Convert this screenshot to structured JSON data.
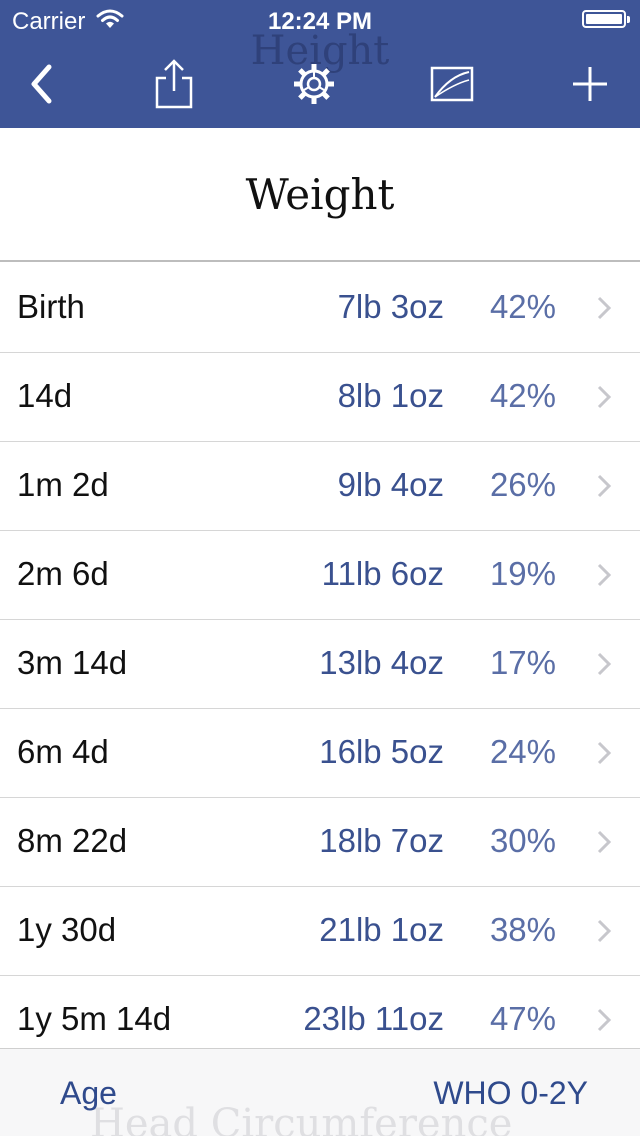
{
  "status_bar": {
    "carrier": "Carrier",
    "time": "12:24 PM"
  },
  "nav": {
    "ghost_title": "Height",
    "icons": [
      "back-chevron-icon",
      "share-icon",
      "gear-icon",
      "chart-icon",
      "plus-icon"
    ]
  },
  "header": {
    "title": "Weight"
  },
  "rows": [
    {
      "age": "Birth",
      "weight": "7lb 3oz",
      "percentile": "42%"
    },
    {
      "age": "14d",
      "weight": "8lb 1oz",
      "percentile": "42%"
    },
    {
      "age": "1m 2d",
      "weight": "9lb 4oz",
      "percentile": "26%"
    },
    {
      "age": "2m 6d",
      "weight": "11lb 6oz",
      "percentile": "19%"
    },
    {
      "age": "3m 14d",
      "weight": "13lb 4oz",
      "percentile": "17%"
    },
    {
      "age": "6m 4d",
      "weight": "16lb 5oz",
      "percentile": "24%"
    },
    {
      "age": "8m 22d",
      "weight": "18lb 7oz",
      "percentile": "30%"
    },
    {
      "age": "1y 30d",
      "weight": "21lb 1oz",
      "percentile": "38%"
    },
    {
      "age": "1y 5m 14d",
      "weight": "23lb 11oz",
      "percentile": "47%"
    }
  ],
  "bottom_bar": {
    "left_label": "Age",
    "right_label": "WHO 0-2Y",
    "ghost_text": "Head Circumference"
  },
  "colors": {
    "nav_bg": "#3e5597",
    "accent": "#3a518f",
    "percent": "#5a6ea6"
  }
}
